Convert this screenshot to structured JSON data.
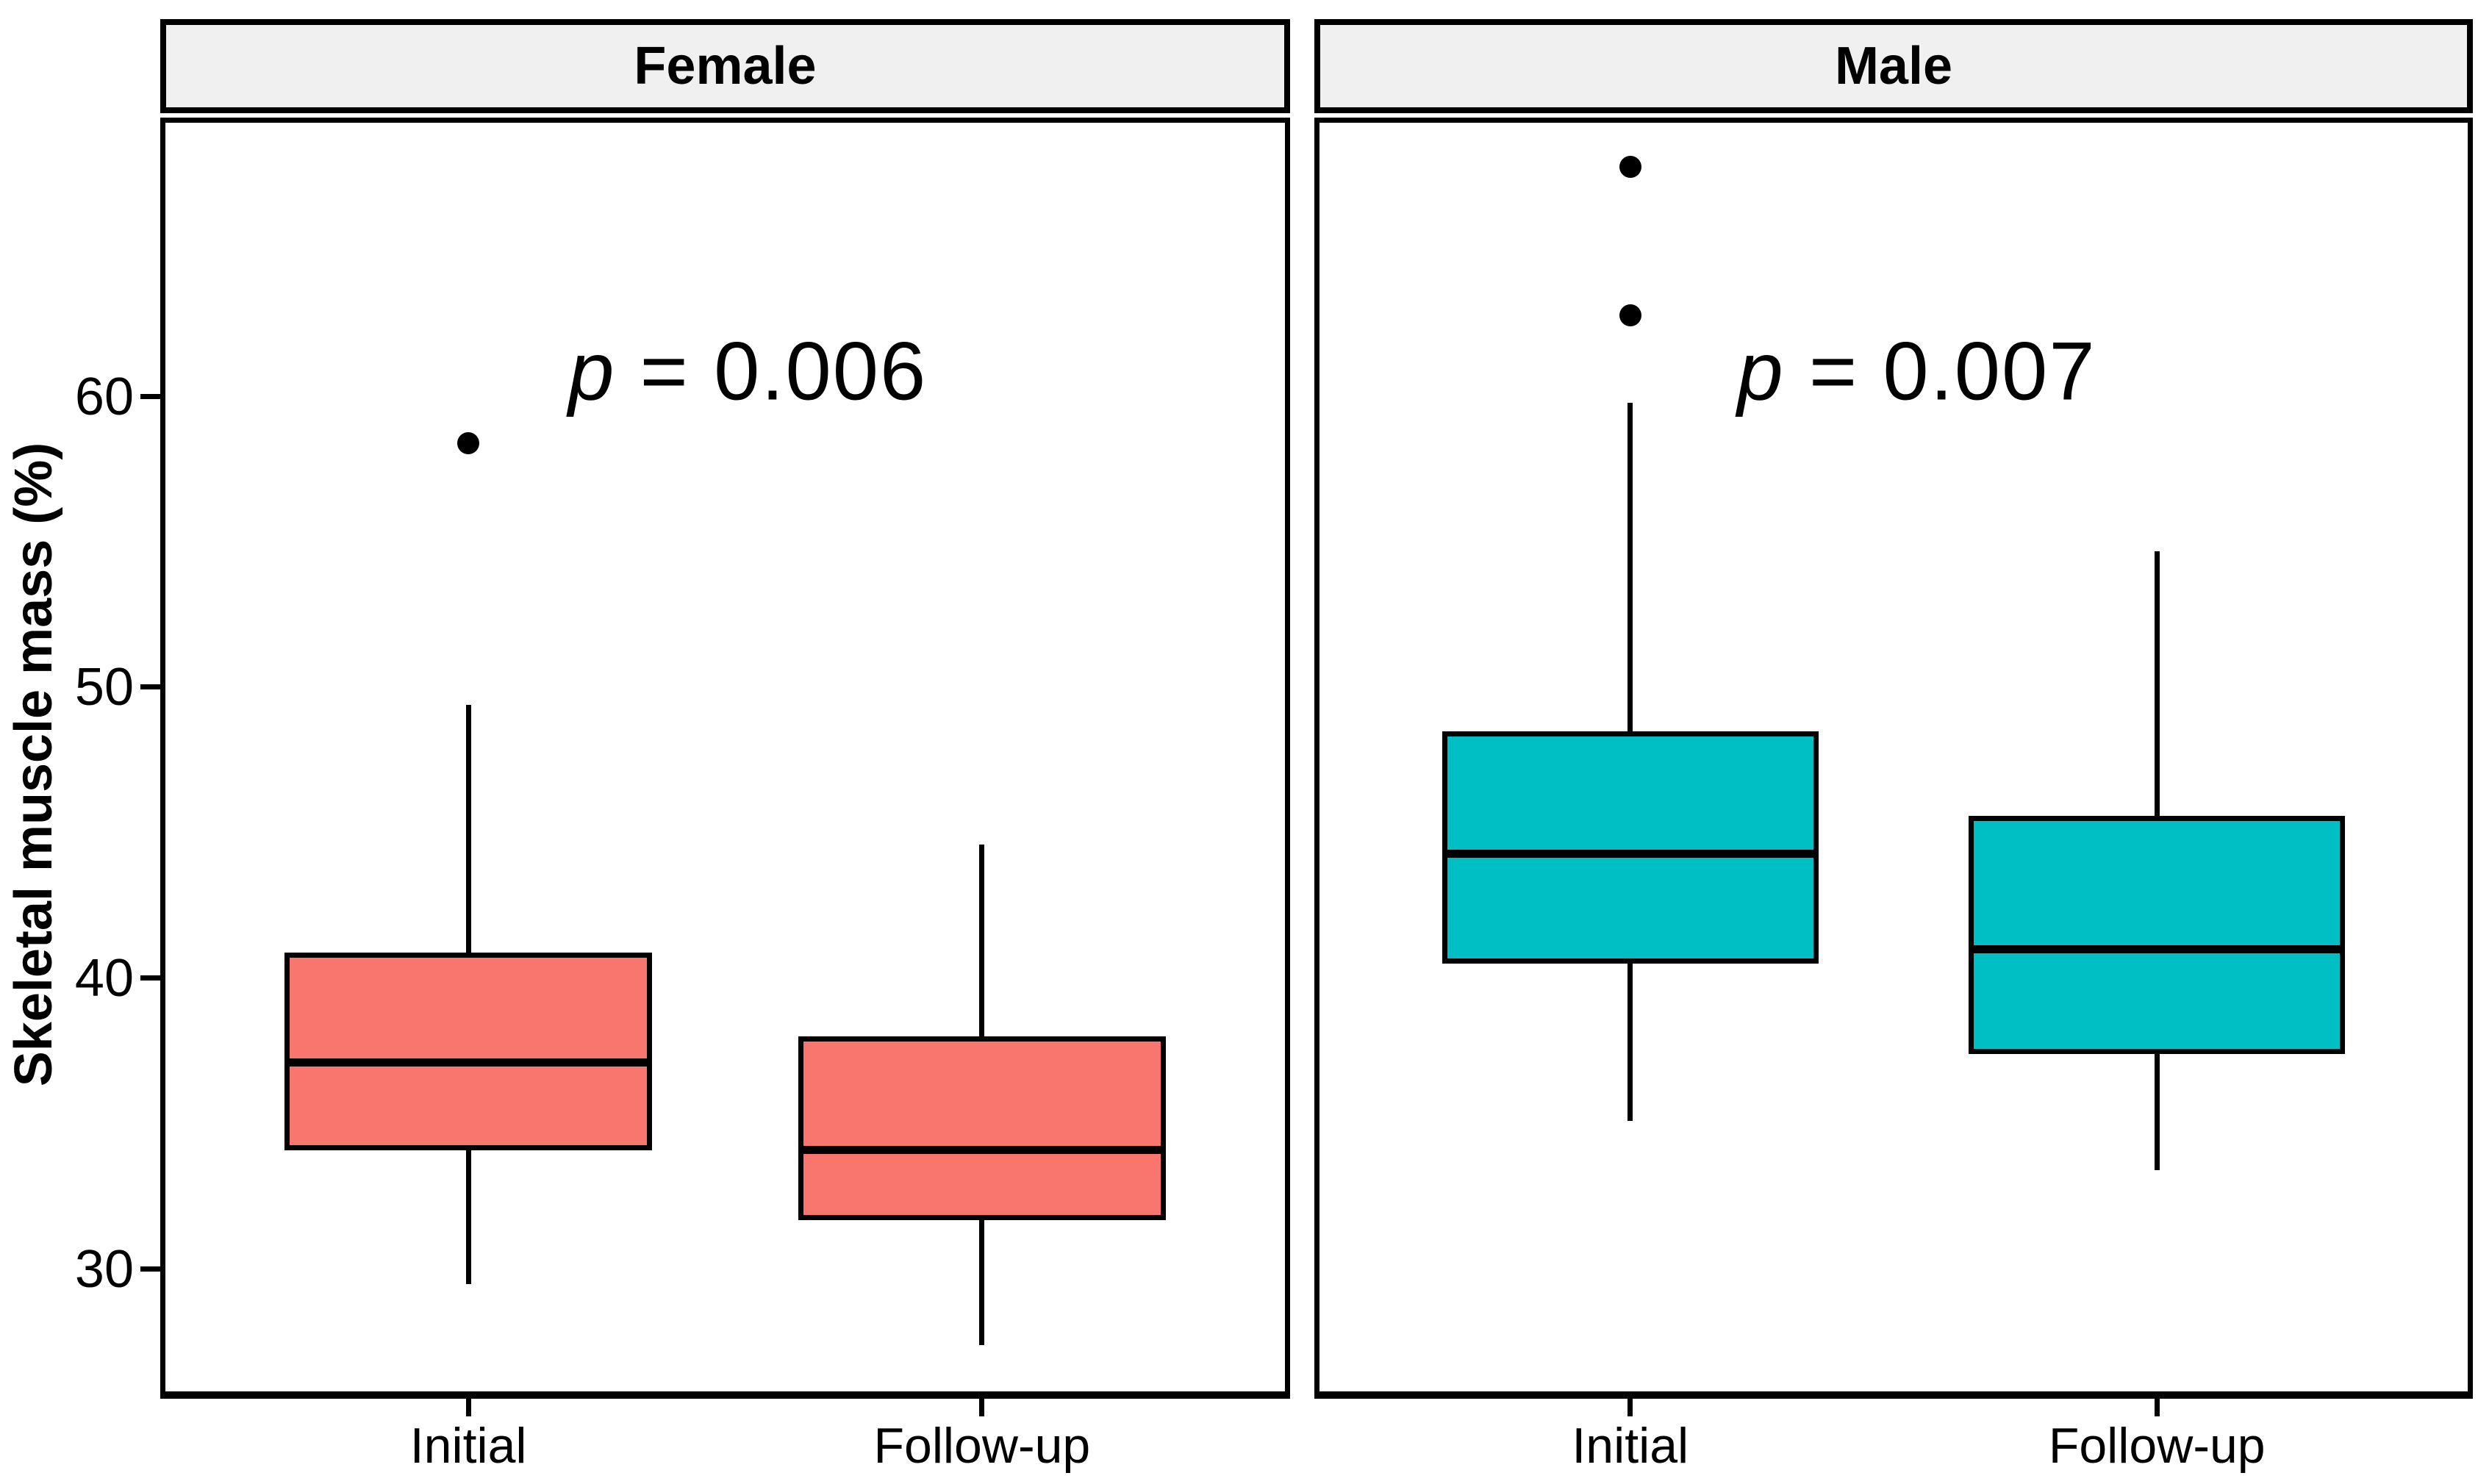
{
  "chart_data": {
    "type": "boxplot",
    "title": "",
    "ylabel": "Skeletal muscle mass (%)",
    "yticks": [
      60,
      50,
      40,
      30
    ],
    "ylim": [
      25.8,
      69.6
    ],
    "categories": [
      "Initial",
      "Follow-up"
    ],
    "grid": false,
    "legend": "none",
    "facets": [
      {
        "label": "Female",
        "fill_color": "#F8766D",
        "p_label": "p = 0.006",
        "boxes": [
          {
            "category": "Initial",
            "whisker_low": 29.5,
            "q1": 34.1,
            "median": 37.1,
            "q3": 40.9,
            "whisker_high": 49.4,
            "outliers": [
              58.4
            ]
          },
          {
            "category": "Follow-up",
            "whisker_low": 27.4,
            "q1": 31.7,
            "median": 34.1,
            "q3": 38.0,
            "whisker_high": 44.6,
            "outliers": []
          }
        ]
      },
      {
        "label": "Male",
        "fill_color": "#00BFC4",
        "p_label": "p = 0.007",
        "boxes": [
          {
            "category": "Initial",
            "whisker_low": 35.1,
            "q1": 40.5,
            "median": 44.3,
            "q3": 48.5,
            "whisker_high": 59.8,
            "outliers": [
              67.9,
              62.8
            ]
          },
          {
            "category": "Follow-up",
            "whisker_low": 33.4,
            "q1": 37.4,
            "median": 41.0,
            "q3": 45.6,
            "whisker_high": 54.7,
            "outliers": []
          }
        ]
      }
    ],
    "colors": {
      "outline": "#000000",
      "strip_bg": "#F0F0F0",
      "panel_bg": "#FFFFFF"
    }
  }
}
